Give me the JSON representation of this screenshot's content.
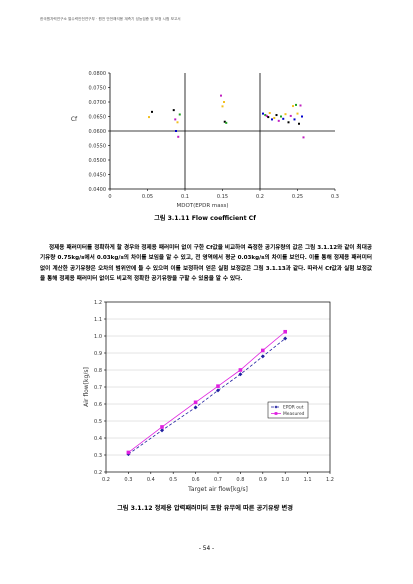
{
  "header": "한국원자력연구소 열수력안전연구부 · 원전 안전해석용 계측기 성능검증 및 보정 시험 보고서",
  "chart_data": [
    {
      "type": "scatter",
      "title": "",
      "xlabel": "MDOT(EPDR mass)",
      "ylabel": "Cf",
      "xlim": [
        0,
        0.3
      ],
      "ylim": [
        0.04,
        0.08
      ],
      "xticks": [
        "0",
        "0.05",
        "0.1",
        "0.15",
        "0.2",
        "0.25",
        "0.3"
      ],
      "yticks": [
        "0.0800",
        "0.0750",
        "0.0700",
        "0.0650",
        "0.0600",
        "0.0550",
        "0.0500",
        "0.0450",
        "0.0400"
      ],
      "reference_line_y": 0.06,
      "points": [
        {
          "x": 0.052,
          "y": 0.0648,
          "color": "#f2c020"
        },
        {
          "x": 0.056,
          "y": 0.0666,
          "color": "#000000"
        },
        {
          "x": 0.085,
          "y": 0.0672,
          "color": "#000000"
        },
        {
          "x": 0.087,
          "y": 0.064,
          "color": "#c020c0"
        },
        {
          "x": 0.088,
          "y": 0.06,
          "color": "#0000cc"
        },
        {
          "x": 0.09,
          "y": 0.063,
          "color": "#f2c020"
        },
        {
          "x": 0.091,
          "y": 0.058,
          "color": "#c020c0"
        },
        {
          "x": 0.093,
          "y": 0.0657,
          "color": "#20a020"
        },
        {
          "x": 0.148,
          "y": 0.0722,
          "color": "#c020c0"
        },
        {
          "x": 0.15,
          "y": 0.0685,
          "color": "#f2c020"
        },
        {
          "x": 0.152,
          "y": 0.07,
          "color": "#f2c020"
        },
        {
          "x": 0.153,
          "y": 0.0632,
          "color": "#000000"
        },
        {
          "x": 0.155,
          "y": 0.0628,
          "color": "#20a020"
        },
        {
          "x": 0.204,
          "y": 0.066,
          "color": "#0000cc"
        },
        {
          "x": 0.207,
          "y": 0.0655,
          "color": "#20a020"
        },
        {
          "x": 0.209,
          "y": 0.0652,
          "color": "#c020c0"
        },
        {
          "x": 0.211,
          "y": 0.0648,
          "color": "#000000"
        },
        {
          "x": 0.213,
          "y": 0.0662,
          "color": "#f2c020"
        },
        {
          "x": 0.216,
          "y": 0.064,
          "color": "#0000cc"
        },
        {
          "x": 0.219,
          "y": 0.0645,
          "color": "#f2c020"
        },
        {
          "x": 0.222,
          "y": 0.0655,
          "color": "#000000"
        },
        {
          "x": 0.225,
          "y": 0.0635,
          "color": "#c020c0"
        },
        {
          "x": 0.228,
          "y": 0.065,
          "color": "#20a020"
        },
        {
          "x": 0.231,
          "y": 0.0642,
          "color": "#0000cc"
        },
        {
          "x": 0.234,
          "y": 0.0658,
          "color": "#f2c020"
        },
        {
          "x": 0.238,
          "y": 0.063,
          "color": "#000000"
        },
        {
          "x": 0.241,
          "y": 0.0652,
          "color": "#c020c0"
        },
        {
          "x": 0.244,
          "y": 0.0686,
          "color": "#f2c020"
        },
        {
          "x": 0.246,
          "y": 0.064,
          "color": "#0000cc"
        },
        {
          "x": 0.248,
          "y": 0.069,
          "color": "#20a020"
        },
        {
          "x": 0.25,
          "y": 0.066,
          "color": "#f2c020"
        },
        {
          "x": 0.252,
          "y": 0.0625,
          "color": "#000000"
        },
        {
          "x": 0.254,
          "y": 0.0688,
          "color": "#c020c0"
        },
        {
          "x": 0.256,
          "y": 0.065,
          "color": "#0000cc"
        },
        {
          "x": 0.258,
          "y": 0.0578,
          "color": "#c020c0"
        }
      ]
    },
    {
      "type": "line",
      "title": "",
      "xlabel": "Target air flow[kg/s]",
      "ylabel": "Air flow[kg/s]",
      "xlim": [
        0.2,
        1.2
      ],
      "ylim": [
        0.2,
        1.2
      ],
      "xticks": [
        "0.2",
        "0.3",
        "0.4",
        "0.5",
        "0.6",
        "0.7",
        "0.8",
        "0.9",
        "1.0",
        "1.1",
        "1.2"
      ],
      "yticks": [
        "1.2",
        "1.1",
        "1.0",
        "0.9",
        "0.8",
        "0.7",
        "0.6",
        "0.5",
        "0.4",
        "0.3",
        "0.2"
      ],
      "legend_position": "center-right",
      "series": [
        {
          "name": "EPDR out",
          "color": "#2020a0",
          "marker": "diamond",
          "dash": "3,2",
          "x": [
            0.3,
            0.45,
            0.6,
            0.7,
            0.8,
            0.9,
            1.0
          ],
          "y": [
            0.305,
            0.445,
            0.58,
            0.68,
            0.775,
            0.88,
            0.985
          ]
        },
        {
          "name": "Measured",
          "color": "#e020e0",
          "marker": "square",
          "dash": "",
          "x": [
            0.3,
            0.45,
            0.6,
            0.7,
            0.8,
            0.9,
            1.0
          ],
          "y": [
            0.315,
            0.465,
            0.61,
            0.705,
            0.8,
            0.915,
            1.025
          ]
        }
      ]
    }
  ],
  "captions": {
    "fig1": "그림 3.1.11 Flow coefficient Cf",
    "fig2": "그림 3.1.12 정제용 압력패러미터 포함 유무에 따른 공기유량 변경"
  },
  "body": {
    "paragraph": "정제용 패러미터를 정확하게 할 경우와 정제용 패러미터 없이 구한 Cf값을 비교하여 측정한 공기유량의 값은 그림 3.1.12와 같이 최대공기유량 0.75kg/s에서 0.03kg/s의 차이를 보임을 알 수 있고, 전 영역에서 평균 0.03kg/s의 차이를 보인다. 이를 통해 정제용 패러미터 없이 계산한 공기유량은 오차의 범위안에 들 수 있으며 이를 보정하여 얻은 실험 보정값은 그림 3.1.13과 같다. 따라서 Cf값과 실험 보정값을 통해 정제용 패러미터 없이도 비교적 정확한 공기유량을 구할 수 있음을 알 수 있다."
  },
  "page_number": "- 54 -"
}
